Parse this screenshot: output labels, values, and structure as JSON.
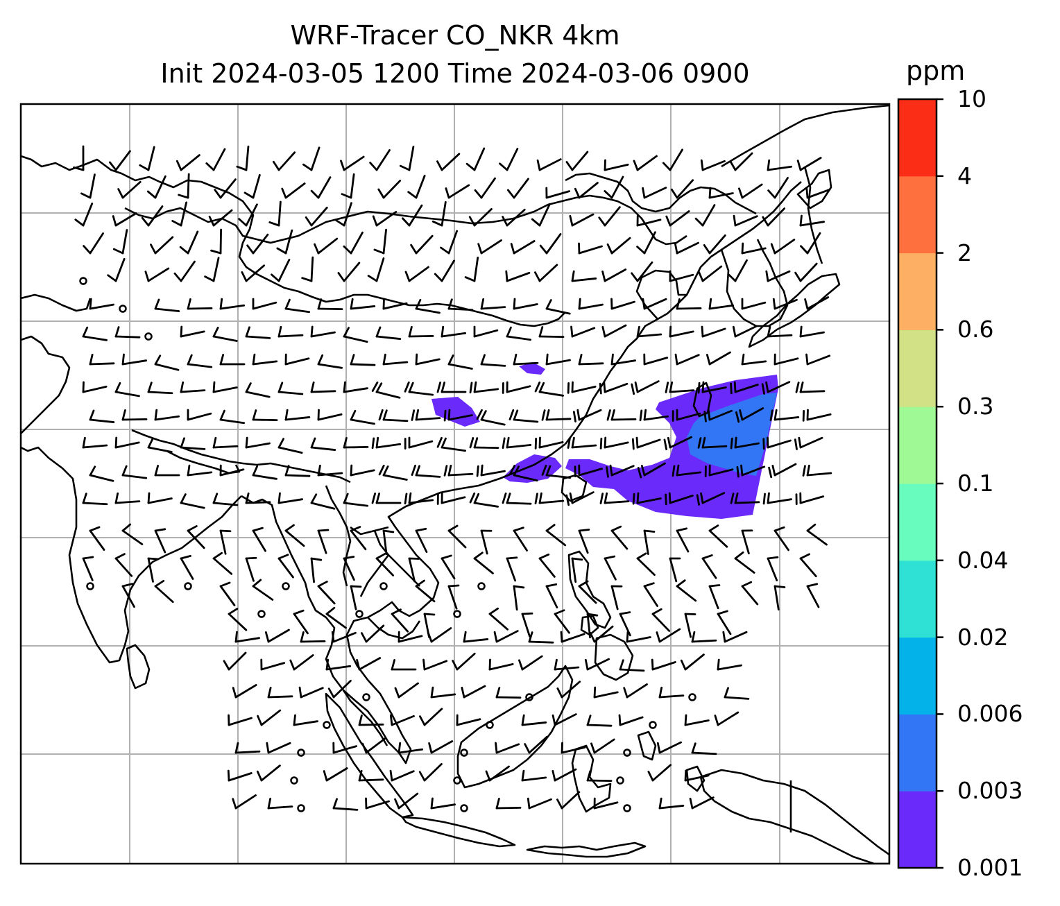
{
  "title": {
    "line1": "WRF-Tracer CO_NKR 4km",
    "line2": "Init 2024-03-05 1200 Time 2024-03-06 0900"
  },
  "colorbar": {
    "unit": "ppm",
    "levels": [
      "0.001",
      "0.003",
      "0.006",
      "0.02",
      "0.04",
      "0.1",
      "0.3",
      "0.6",
      "2",
      "4",
      "10"
    ],
    "colors": [
      "#6a2bfa",
      "#3376f5",
      "#04b2ea",
      "#2fe0d5",
      "#69fcbf",
      "#9ffa96",
      "#d2e086",
      "#fdb063",
      "#fe703d",
      "#fc2d17"
    ]
  },
  "map": {
    "grid_color": "#b0b0b0",
    "coastline_color": "#000000",
    "plume_color": "#6a2bfa",
    "plume_core_color": "#3376f5"
  }
}
